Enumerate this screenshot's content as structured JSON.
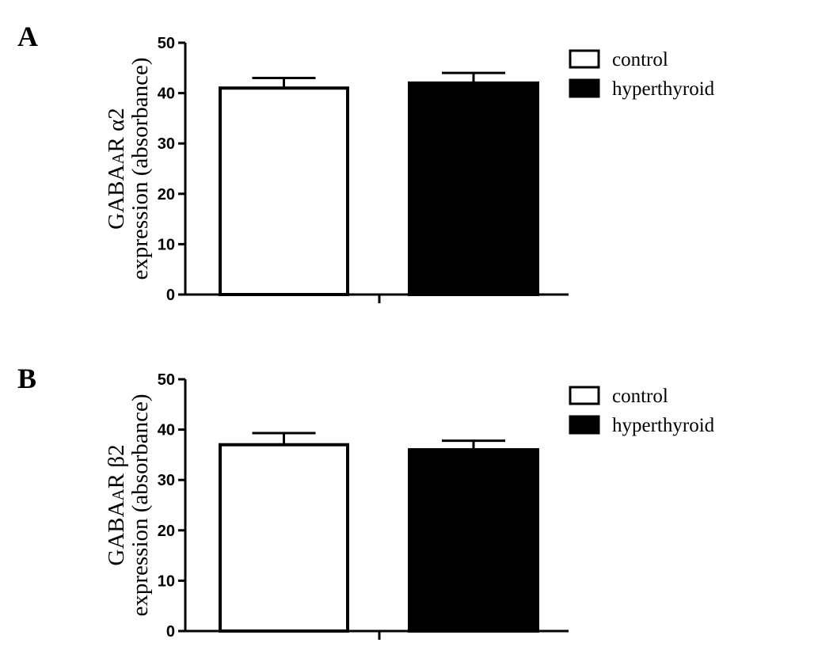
{
  "chart_data": [
    {
      "type": "bar",
      "panel_label": "A",
      "ylabel_line1_main": "GABA",
      "ylabel_line1_small": "A",
      "ylabel_line1_rest": "R α2",
      "ylabel_line2": "expression (absorbance)",
      "ylim": [
        0,
        50
      ],
      "yticks": [
        "0",
        "10",
        "20",
        "30",
        "40",
        "50"
      ],
      "grid": false,
      "legend_position": "top-right",
      "series": [
        {
          "name": "control",
          "value": 41,
          "error": 2,
          "color": "#ffffff"
        },
        {
          "name": "hyperthyroid",
          "value": 42,
          "error": 2,
          "color": "#000000"
        }
      ]
    },
    {
      "type": "bar",
      "panel_label": "B",
      "ylabel_line1_main": "GABA",
      "ylabel_line1_small": "A",
      "ylabel_line1_rest": "R β2",
      "ylabel_line2": "expression (absorbance)",
      "ylim": [
        0,
        50
      ],
      "yticks": [
        "0",
        "10",
        "20",
        "30",
        "40",
        "50"
      ],
      "grid": false,
      "legend_position": "top-right",
      "series": [
        {
          "name": "control",
          "value": 37,
          "error": 2.3,
          "color": "#ffffff"
        },
        {
          "name": "hyperthyroid",
          "value": 36,
          "error": 1.8,
          "color": "#000000"
        }
      ]
    }
  ]
}
